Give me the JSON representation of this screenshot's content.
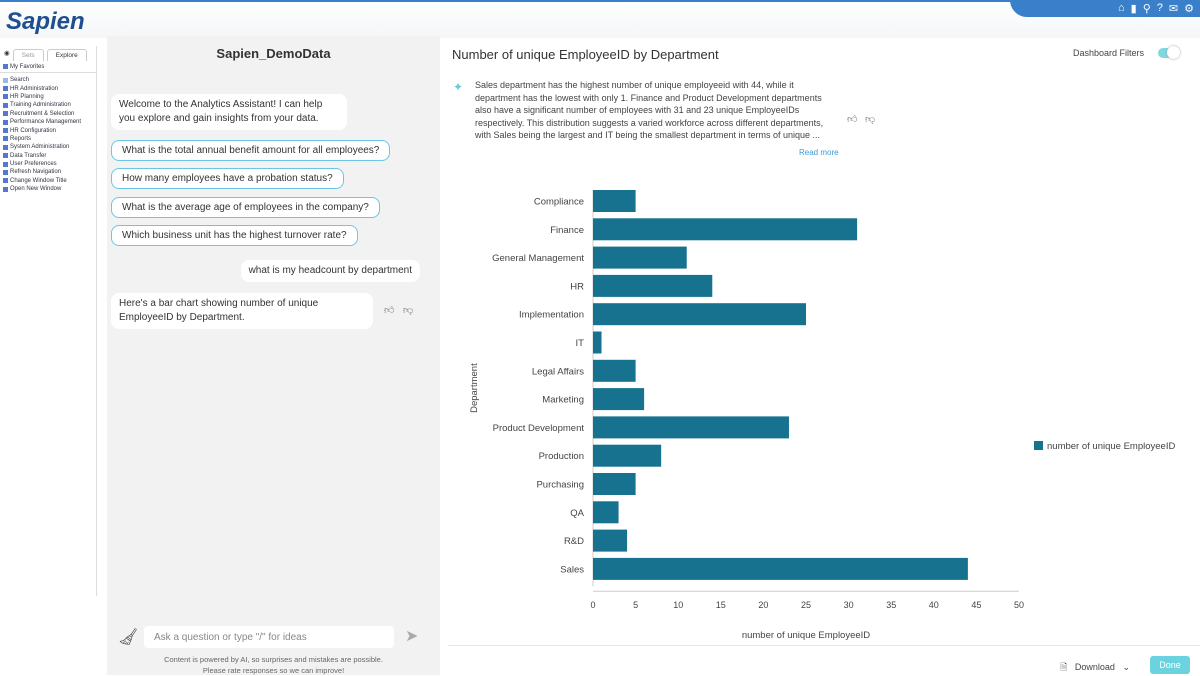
{
  "header": {
    "logo": "Sapien",
    "icons": [
      "home-icon",
      "chart-icon",
      "search-icon",
      "help-icon",
      "mail-icon",
      "gear-icon"
    ]
  },
  "nav": {
    "tabs": [
      "Sets",
      "Explore"
    ],
    "favorites": "My Favorites",
    "items": [
      "Search",
      "HR Administration",
      "HR Planning",
      "Training Administration",
      "Recruitment & Selection",
      "Performance Management",
      "HR Configuration",
      "Reports",
      "System Administration",
      "Data Transfer",
      "User Preferences",
      "Refresh Navigation",
      "Change Window Title",
      "Open New Window"
    ]
  },
  "chat": {
    "title": "Sapien_DemoData",
    "welcome": "Welcome to the Analytics Assistant! I can help you explore and gain insights from your data.",
    "suggestions": [
      "What is the total annual benefit amount for all employees?",
      "How many employees have a probation status?",
      "What is the average age of employees in the company?",
      "Which business unit has the highest turnover rate?"
    ],
    "user_message": "what is my headcount by department",
    "reply": "Here's a bar chart showing number of unique EmployeeID by Department.",
    "input_placeholder": "Ask a question or type \"/\" for ideas",
    "footer1": "Content is powered by AI, so surprises and mistakes are possible.",
    "footer2": "Please rate responses so we can improve!"
  },
  "main": {
    "title": "Number of unique EmployeeID by Department",
    "filters_label": "Dashboard Filters",
    "filters_on": true,
    "summary": "Sales department has the highest number of unique employeeid with 44, while it department has the lowest with only 1. Finance and Product Development departments also have a significant number of employees with 31 and 23 unique EmployeeIDs respectively. This distribution suggests a varied workforce across different departments, with Sales being the largest and IT being the smallest department in terms of unique ...",
    "read_more": "Read more",
    "download": "Download",
    "done": "Done"
  },
  "chart_data": {
    "type": "bar",
    "orientation": "horizontal",
    "categories": [
      "Compliance",
      "Finance",
      "General Management",
      "HR",
      "Implementation",
      "IT",
      "Legal Affairs",
      "Marketing",
      "Product Development",
      "Production",
      "Purchasing",
      "QA",
      "R&D",
      "Sales"
    ],
    "series": [
      {
        "name": "number of unique EmployeeID",
        "values": [
          5,
          31,
          11,
          14,
          25,
          1,
          5,
          6,
          23,
          8,
          5,
          3,
          4,
          44
        ]
      }
    ],
    "xlabel": "number of unique EmployeeID",
    "ylabel": "Department",
    "xlim": [
      0,
      50
    ],
    "xticks": [
      0,
      5,
      10,
      15,
      20,
      25,
      30,
      35,
      40,
      45,
      50
    ],
    "legend": "right",
    "color": "#16728e",
    "grid": false
  }
}
